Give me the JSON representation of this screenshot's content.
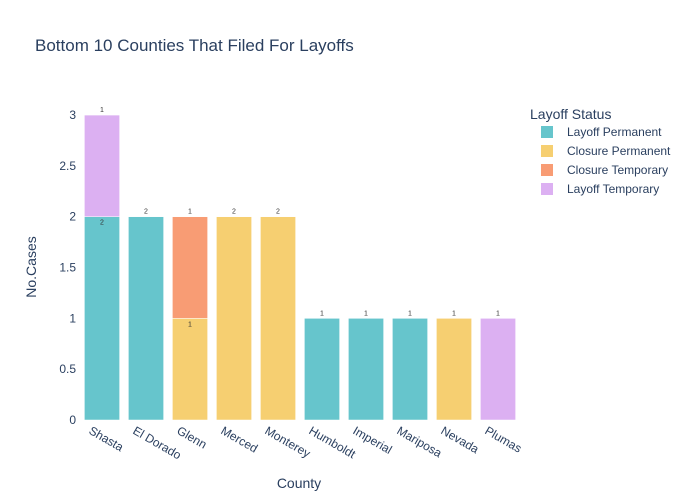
{
  "chart_data": {
    "type": "bar",
    "barmode": "stack",
    "title": "Bottom 10 Counties That Filed For Layoffs",
    "xlabel": "County",
    "ylabel": "No.Cases",
    "ylim": [
      0,
      3.05
    ],
    "yticks": [
      0,
      0.5,
      1,
      1.5,
      2,
      2.5,
      3
    ],
    "ytick_labels": [
      "0",
      "0.5",
      "1",
      "1.5",
      "2",
      "2.5",
      "3"
    ],
    "grid": false,
    "legend_title": "Layoff Status",
    "legend_placement": "top-right",
    "categories": [
      "Shasta",
      "El Dorado",
      "Glenn",
      "Merced",
      "Monterey",
      "Humboldt",
      "Imperial",
      "Mariposa",
      "Nevada",
      "Plumas"
    ],
    "series": [
      {
        "name": "Layoff Permanent",
        "color": "#66c5cc",
        "values": [
          2,
          2,
          0,
          0,
          0,
          1,
          1,
          1,
          0,
          0
        ]
      },
      {
        "name": "Closure Permanent",
        "color": "#f6cf71",
        "values": [
          0,
          0,
          1,
          2,
          2,
          0,
          0,
          0,
          1,
          0
        ]
      },
      {
        "name": "Closure Temporary",
        "color": "#f89c74",
        "values": [
          0,
          0,
          1,
          0,
          0,
          0,
          0,
          0,
          0,
          0
        ]
      },
      {
        "name": "Layoff Temporary",
        "color": "#dcb0f2",
        "values": [
          1,
          0,
          0,
          0,
          0,
          0,
          0,
          0,
          0,
          1
        ]
      }
    ]
  }
}
